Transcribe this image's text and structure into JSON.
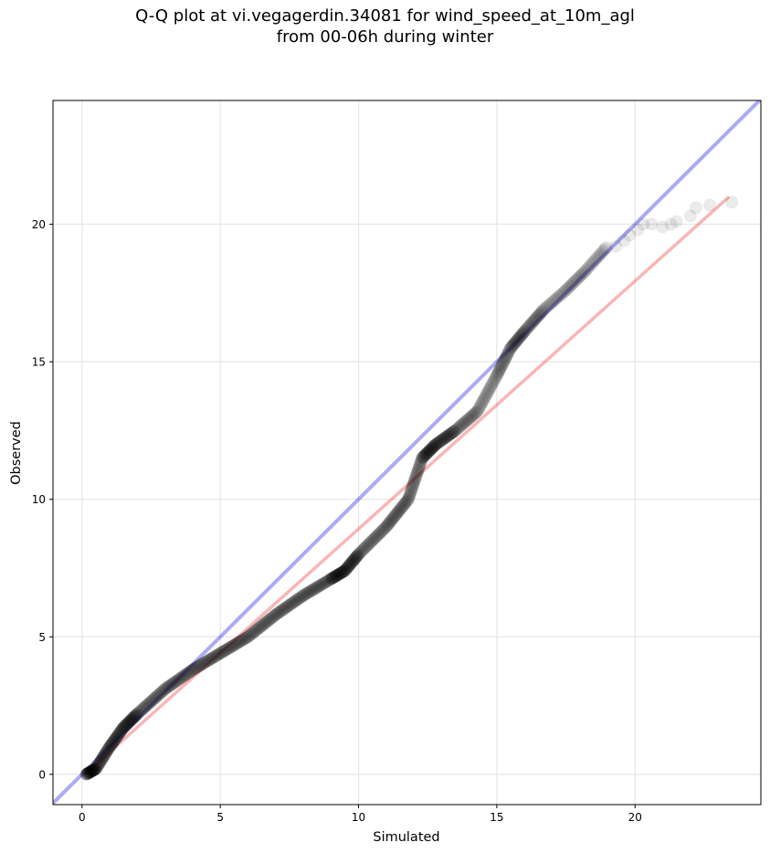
{
  "chart": {
    "title_line1": "Q-Q plot at vi.vegagerdin.34081 for wind_speed_at_10m_agl",
    "title_line2": "from 00-06h during winter"
  },
  "chart_data": {
    "type": "scatter",
    "title": "Q-Q plot at vi.vegagerdin.34081 for wind_speed_at_10m_agl from 00-06h during winter",
    "xlabel": "Simulated",
    "ylabel": "Observed",
    "xlim": [
      -1.05,
      24.55
    ],
    "ylim": [
      -1.1,
      24.5
    ],
    "xticks": [
      0,
      5,
      10,
      15,
      20
    ],
    "yticks": [
      0,
      5,
      10,
      15,
      20
    ],
    "grid": true,
    "colors": {
      "points": "#000000",
      "identity_line": "#0000dd",
      "fit_line": "#ee2222",
      "grid": "#e6e6e6"
    },
    "series": [
      {
        "type": "line",
        "role": "identity",
        "x": [
          -1.05,
          24.55
        ],
        "y": [
          -1.05,
          24.55
        ]
      },
      {
        "type": "line",
        "role": "fit",
        "x": [
          0.1,
          23.4
        ],
        "y": [
          0.0,
          21.0
        ]
      },
      {
        "type": "scatter",
        "quantile_curve_x": [
          0.15,
          0.5,
          1.0,
          1.5,
          2.0,
          3.0,
          4.0,
          5.0,
          6.0,
          7.0,
          8.0,
          9.0,
          9.5,
          10.0,
          11.0,
          11.8,
          12.3,
          12.8,
          13.5,
          14.3,
          15.0,
          15.5,
          16.0,
          16.7,
          17.5,
          18.2,
          19.0
        ],
        "quantile_curve_y": [
          0.0,
          0.2,
          1.0,
          1.7,
          2.2,
          3.1,
          3.8,
          4.4,
          5.0,
          5.8,
          6.5,
          7.1,
          7.4,
          8.0,
          9.0,
          10.0,
          11.5,
          12.0,
          12.5,
          13.2,
          14.5,
          15.5,
          16.1,
          16.9,
          17.6,
          18.3,
          19.2
        ],
        "tail_x": [
          19.3,
          19.6,
          19.8,
          20.1,
          20.3,
          20.6,
          21.0,
          21.3,
          21.5,
          22.0,
          22.2,
          22.7,
          23.5
        ],
        "tail_y": [
          19.2,
          19.4,
          19.6,
          19.8,
          20.0,
          20.0,
          19.9,
          20.0,
          20.1,
          20.3,
          20.6,
          20.7,
          20.8
        ]
      }
    ]
  }
}
